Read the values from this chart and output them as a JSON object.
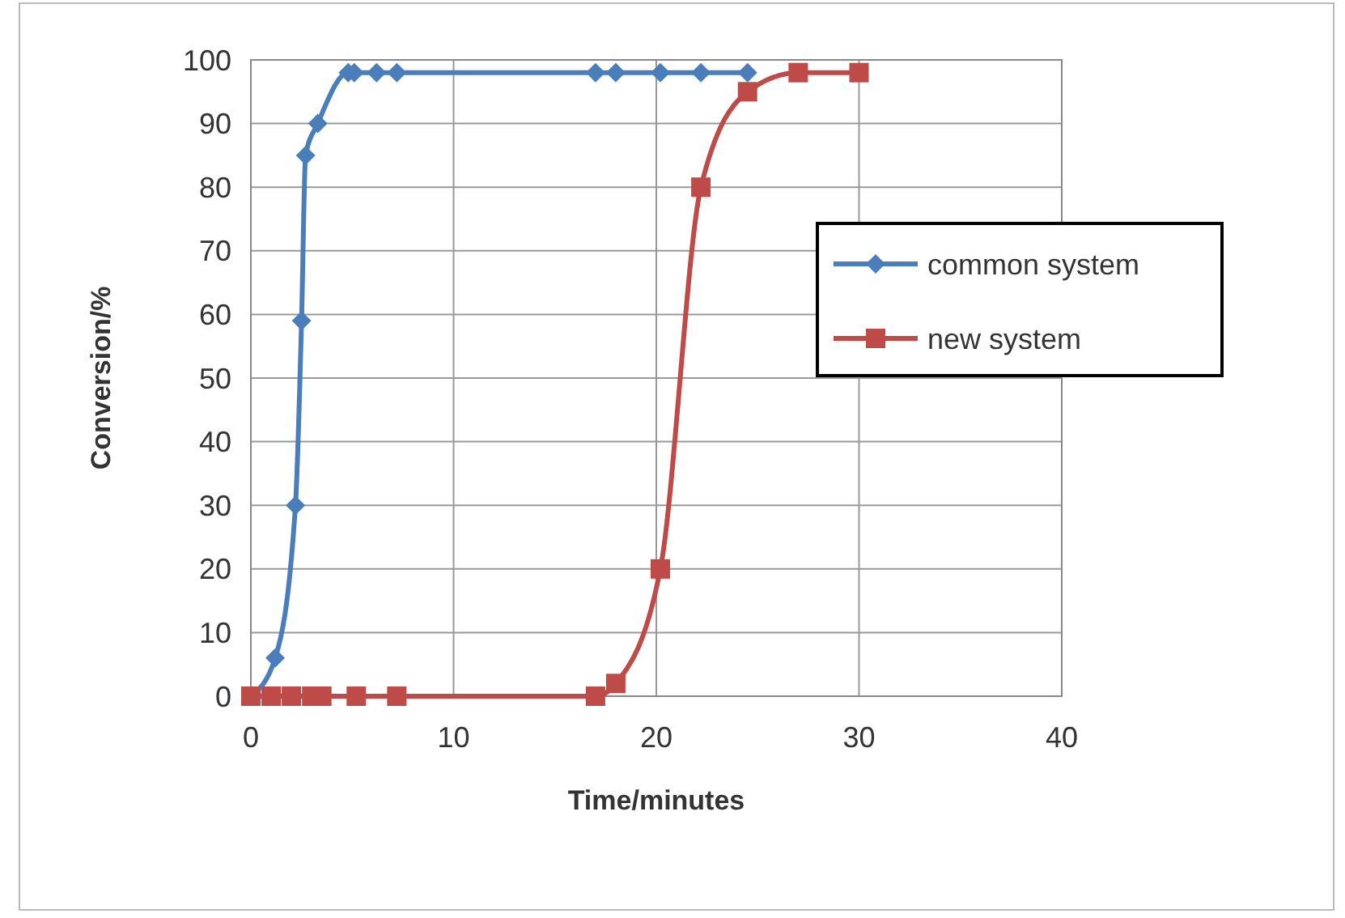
{
  "chart_data": {
    "type": "line",
    "xlabel": "Time/minutes",
    "ylabel": "Conversion/%",
    "xlim": [
      0,
      40
    ],
    "xticks": [
      0,
      10,
      20,
      30,
      40
    ],
    "ylim": [
      0,
      100
    ],
    "yticks": [
      0,
      10,
      20,
      30,
      40,
      50,
      60,
      70,
      80,
      90,
      100
    ],
    "grid": true,
    "legend": "right",
    "line_style": "solid",
    "series": [
      {
        "name": "common system",
        "color": "#4a7ebb",
        "marker": "diamond",
        "x": [
          0,
          1.2,
          2.2,
          2.5,
          2.7,
          3.3,
          4.8,
          5.1,
          6.2,
          7.2,
          17,
          18,
          20.2,
          22.2,
          24.5
        ],
        "values": [
          0,
          6,
          30,
          59,
          85,
          90,
          98,
          98,
          98,
          98,
          98,
          98,
          98,
          98,
          98
        ]
      },
      {
        "name": "new system",
        "color": "#be4b48",
        "marker": "square",
        "x": [
          0,
          1,
          2,
          3,
          3.5,
          5.2,
          7.2,
          17,
          18,
          20.2,
          22.2,
          24.5,
          27,
          30
        ],
        "values": [
          0,
          0,
          0,
          0,
          0,
          0,
          0,
          0,
          2,
          20,
          80,
          95,
          98,
          98
        ]
      }
    ]
  }
}
